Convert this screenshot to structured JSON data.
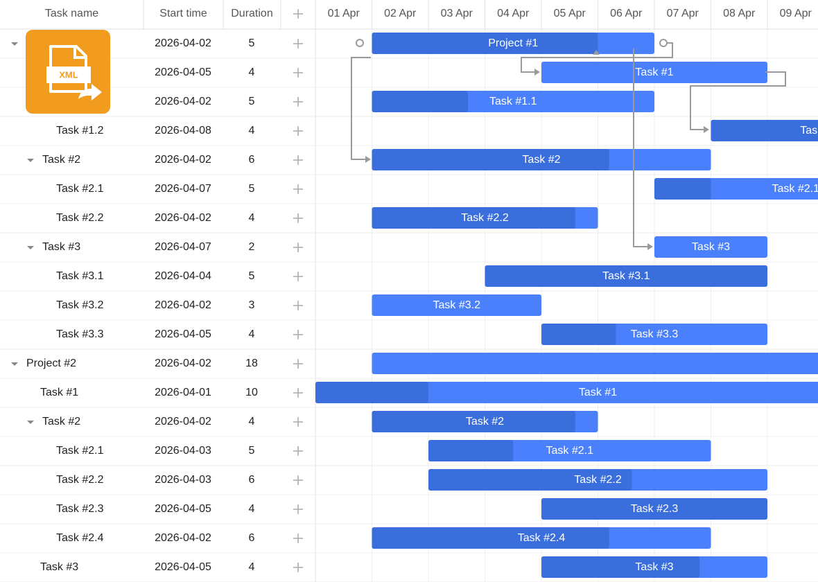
{
  "columns": [
    "Task name",
    "Start time",
    "Duration"
  ],
  "dates": [
    "01 Apr",
    "02 Apr",
    "03 Apr",
    "04 Apr",
    "05 Apr",
    "06 Apr",
    "07 Apr",
    "08 Apr",
    "09 Apr"
  ],
  "icon_label": "XML",
  "rows": [
    {
      "name": "Project #1",
      "start": "2026-04-02",
      "duration": 5,
      "progress": 0.8,
      "level": 0,
      "toggle": true
    },
    {
      "name": "Task #1",
      "start": "2026-04-05",
      "duration": 4,
      "progress": 0,
      "level": 1,
      "toggle": false
    },
    {
      "name": "Task #1.1",
      "start": "2026-04-02",
      "duration": 5,
      "progress": 0.34,
      "level": 2,
      "toggle": false
    },
    {
      "name": "Task #1.2",
      "start": "2026-04-08",
      "duration": 4,
      "progress": 0.5,
      "level": 2,
      "toggle": false
    },
    {
      "name": "Task #2",
      "start": "2026-04-02",
      "duration": 6,
      "progress": 0.7,
      "level": 1,
      "toggle": true
    },
    {
      "name": "Task #2.1",
      "start": "2026-04-07",
      "duration": 5,
      "progress": 0.2,
      "level": 2,
      "toggle": false
    },
    {
      "name": "Task #2.2",
      "start": "2026-04-02",
      "duration": 4,
      "progress": 0.9,
      "level": 2,
      "toggle": false
    },
    {
      "name": "Task #3",
      "start": "2026-04-07",
      "duration": 2,
      "progress": 0,
      "level": 1,
      "toggle": true
    },
    {
      "name": "Task #3.1",
      "start": "2026-04-04",
      "duration": 5,
      "progress": 1,
      "level": 2,
      "toggle": false
    },
    {
      "name": "Task #3.2",
      "start": "2026-04-02",
      "duration": 3,
      "progress": 0,
      "level": 2,
      "toggle": false
    },
    {
      "name": "Task #3.3",
      "start": "2026-04-05",
      "duration": 4,
      "progress": 0.33,
      "level": 2,
      "toggle": false
    },
    {
      "name": "Project #2",
      "start": "2026-04-02",
      "duration": 18,
      "progress": 0,
      "level": 0,
      "toggle": true
    },
    {
      "name": "Task #1",
      "start": "2026-04-01",
      "duration": 10,
      "progress": 0.2,
      "level": 1,
      "toggle": false
    },
    {
      "name": "Task #2",
      "start": "2026-04-02",
      "duration": 4,
      "progress": 0.9,
      "level": 1,
      "toggle": true
    },
    {
      "name": "Task #2.1",
      "start": "2026-04-03",
      "duration": 5,
      "progress": 0.3,
      "level": 2,
      "toggle": false
    },
    {
      "name": "Task #2.2",
      "start": "2026-04-03",
      "duration": 6,
      "progress": 0.6,
      "level": 2,
      "toggle": false
    },
    {
      "name": "Task #2.3",
      "start": "2026-04-05",
      "duration": 4,
      "progress": 1,
      "level": 2,
      "toggle": false
    },
    {
      "name": "Task #2.4",
      "start": "2026-04-02",
      "duration": 6,
      "progress": 0.7,
      "level": 2,
      "toggle": false
    },
    {
      "name": "Task #3",
      "start": "2026-04-05",
      "duration": 4,
      "progress": 0.7,
      "level": 1,
      "toggle": false
    }
  ]
}
